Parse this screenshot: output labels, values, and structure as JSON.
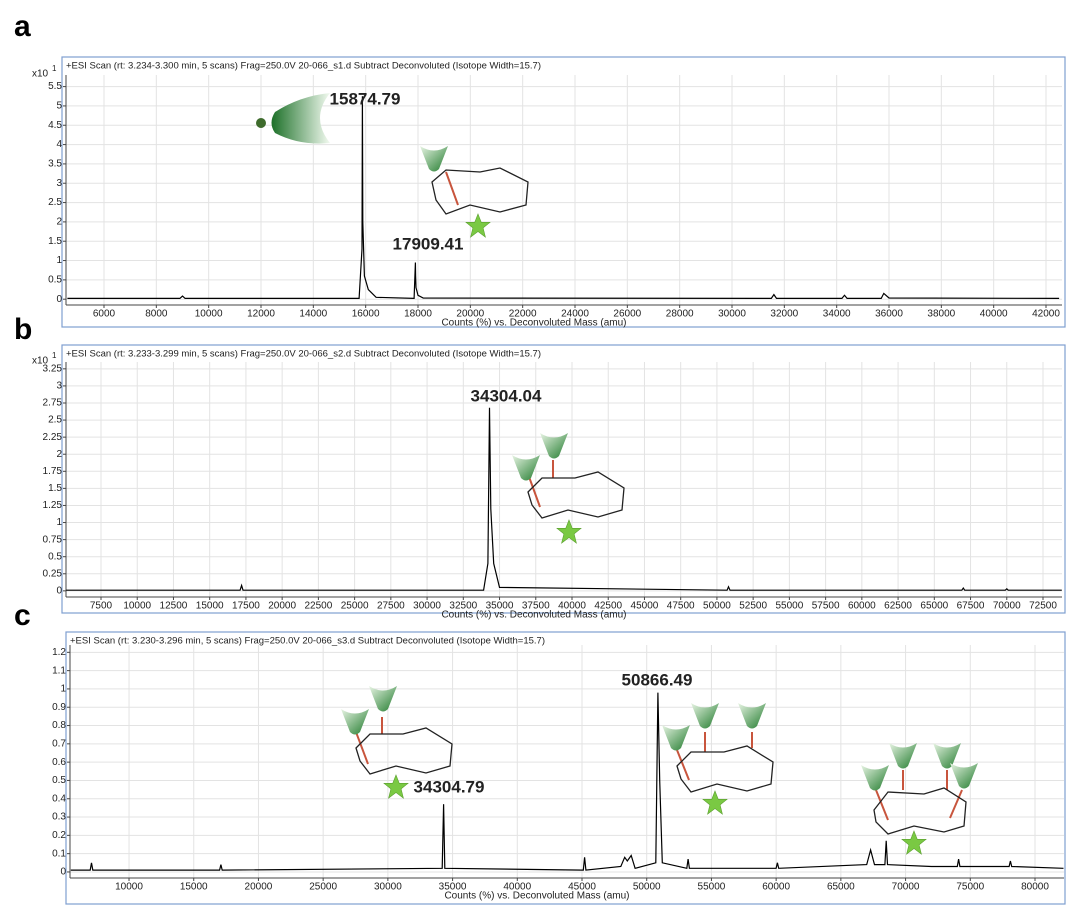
{
  "chart_data": [
    {
      "type": "line",
      "panel_label": "a",
      "title": "+ESI Scan (rt: 3.234-3.300 min, 5 scans) Frag=250.0V 20-066_s1.d  Subtract Deconvoluted (Isotope Width=15.7)",
      "x_label": "Counts (%) vs. Deconvoluted Mass (amu)",
      "y_scale_label": "x10",
      "y_scale_exponent": "1",
      "color": "#000000",
      "grid": true,
      "x": [
        4600,
        8900,
        9000,
        9100,
        15750,
        15860,
        15875,
        15890,
        15950,
        16100,
        16400,
        17850,
        17900,
        17910,
        17925,
        18000,
        18200,
        31500,
        31600,
        31700,
        34200,
        34300,
        34400,
        35700,
        35800,
        36000,
        42500
      ],
      "values": [
        0.02,
        0.02,
        0.08,
        0.02,
        0.02,
        1.3,
        5.25,
        2.0,
        0.6,
        0.25,
        0.05,
        0.02,
        0.95,
        0.6,
        0.3,
        0.1,
        0.03,
        0.02,
        0.12,
        0.02,
        0.02,
        0.1,
        0.02,
        0.02,
        0.15,
        0.03,
        0.02
      ],
      "xlim": [
        4548,
        42611
      ],
      "ylim": [
        -0.15,
        5.8
      ],
      "xticks": [
        6000,
        8000,
        10000,
        12000,
        14000,
        16000,
        18000,
        20000,
        22000,
        24000,
        26000,
        28000,
        30000,
        32000,
        34000,
        36000,
        38000,
        40000,
        42000
      ],
      "yticks": [
        0,
        0.5,
        1,
        1.5,
        2,
        2.5,
        3,
        3.5,
        4,
        4.5,
        5,
        5.5
      ],
      "annotations": [
        "15874.79",
        "17909.41"
      ]
    },
    {
      "type": "line",
      "panel_label": "b",
      "title": "+ESI Scan (rt: 3.233-3.299 min, 5 scans) Frag=250.0V 20-066_s2.d  Subtract Deconvoluted (Isotope Width=15.7)",
      "x_label": "Counts (%) vs. Deconvoluted Mass (amu)",
      "y_scale_label": "x10",
      "y_scale_exponent": "1",
      "color": "#000000",
      "grid": true,
      "x": [
        5100,
        17100,
        17200,
        17300,
        33900,
        34200,
        34304,
        34400,
        34600,
        35000,
        50700,
        50800,
        50900,
        66900,
        67000,
        67100,
        69900,
        70000,
        70100,
        73800
      ],
      "values": [
        0.01,
        0.01,
        0.08,
        0.01,
        0.01,
        0.4,
        2.68,
        1.2,
        0.4,
        0.05,
        0.01,
        0.06,
        0.01,
        0.01,
        0.04,
        0.01,
        0.01,
        0.03,
        0.01,
        0.01
      ],
      "xlim": [
        5085,
        73811
      ],
      "ylim": [
        -0.09,
        3.35
      ],
      "xticks": [
        7500,
        10000,
        12500,
        15000,
        17500,
        20000,
        22500,
        25000,
        27500,
        30000,
        32500,
        35000,
        37500,
        40000,
        42500,
        45000,
        47500,
        50000,
        52500,
        55000,
        57500,
        60000,
        62500,
        65000,
        67500,
        70000,
        72500
      ],
      "yticks": [
        0,
        0.25,
        0.5,
        0.75,
        1,
        1.25,
        1.5,
        1.75,
        2,
        2.25,
        2.5,
        2.75,
        3,
        3.25
      ],
      "annotations": [
        "34304.04"
      ]
    },
    {
      "type": "line",
      "panel_label": "c",
      "title": "+ESI Scan (rt: 3.230-3.296 min, 5 scans) Frag=250.0V 20-066_s3.d  Subtract Deconvoluted (Isotope Width=15.7)",
      "x_label": "Counts (%) vs. Deconvoluted Mass (amu)",
      "color": "#000000",
      "grid": true,
      "x": [
        5500,
        7000,
        7100,
        7200,
        17000,
        17100,
        17200,
        34200,
        34304,
        34400,
        45100,
        45200,
        45300,
        48000,
        48300,
        48500,
        48800,
        49100,
        50700,
        50866,
        51000,
        51200,
        53100,
        53200,
        53300,
        60000,
        60100,
        60200,
        67000,
        67300,
        67600,
        68400,
        68500,
        68600,
        72000,
        74000,
        74100,
        74200,
        78000,
        78100,
        78200,
        82200
      ],
      "values": [
        0.01,
        0.01,
        0.05,
        0.01,
        0.01,
        0.04,
        0.01,
        0.02,
        0.37,
        0.02,
        0.01,
        0.08,
        0.01,
        0.03,
        0.08,
        0.06,
        0.09,
        0.02,
        0.05,
        0.98,
        0.5,
        0.05,
        0.02,
        0.07,
        0.02,
        0.02,
        0.05,
        0.02,
        0.04,
        0.12,
        0.04,
        0.04,
        0.17,
        0.04,
        0.03,
        0.03,
        0.07,
        0.03,
        0.03,
        0.06,
        0.03,
        0.02
      ],
      "xlim": [
        5440,
        82241
      ],
      "ylim": [
        -0.033,
        1.24
      ],
      "xticks": [
        10000,
        15000,
        20000,
        25000,
        30000,
        35000,
        40000,
        45000,
        50000,
        55000,
        60000,
        65000,
        70000,
        75000,
        80000
      ],
      "yticks": [
        0,
        0.1,
        0.2,
        0.3,
        0.4,
        0.5,
        0.6,
        0.7,
        0.8,
        0.9,
        1,
        1.1,
        1.2
      ],
      "annotations": [
        "50866.49",
        "34304.79"
      ]
    }
  ]
}
